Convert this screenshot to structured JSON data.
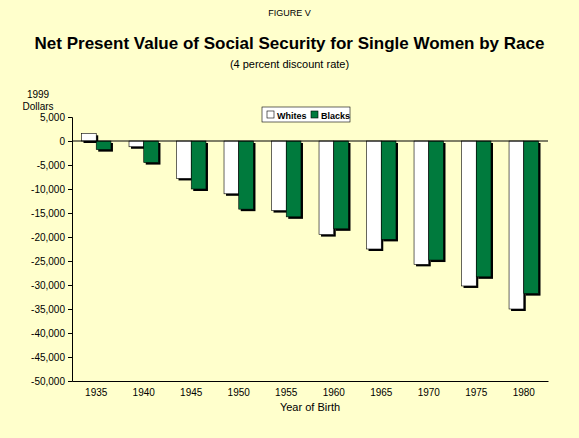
{
  "chart_data": {
    "type": "bar",
    "figure_label": "FIGURE V",
    "title": "Net Present Value of Social Security for Single Women by Race",
    "subtitle": "(4 percent discount rate)",
    "y_label": "1999 Dollars",
    "x_label": "Year of Birth",
    "categories": [
      "1935",
      "1940",
      "1945",
      "1950",
      "1955",
      "1960",
      "1965",
      "1970",
      "1975",
      "1980"
    ],
    "series": [
      {
        "name": "Whites",
        "color": "#FFFFFF",
        "values": [
          1600,
          -1200,
          -7800,
          -11000,
          -14500,
          -19500,
          -22500,
          -25700,
          -30200,
          -35000
        ]
      },
      {
        "name": "Blacks",
        "color": "#007A3D",
        "values": [
          -1800,
          -4500,
          -10000,
          -14200,
          -15800,
          -18300,
          -20500,
          -24800,
          -28300,
          -31800
        ]
      }
    ],
    "ylim": [
      -50000,
      5000
    ],
    "yticks": [
      {
        "value": 5000,
        "label": "5,000"
      },
      0,
      {
        "value": -5000,
        "label": "-5,000"
      },
      {
        "value": -10000,
        "label": "-10,000"
      },
      {
        "value": -15000,
        "label": "-15,000"
      },
      {
        "value": -20000,
        "label": "-20,000"
      },
      {
        "value": -25000,
        "label": "-25,000"
      },
      {
        "value": -30000,
        "label": "-30,000"
      },
      {
        "value": -35000,
        "label": "-35,000"
      },
      {
        "value": -40000,
        "label": "-40,000"
      },
      {
        "value": -45000,
        "label": "-45,000"
      },
      {
        "value": -50000,
        "label": "-50,000"
      }
    ],
    "grid": false,
    "legend": "top"
  }
}
